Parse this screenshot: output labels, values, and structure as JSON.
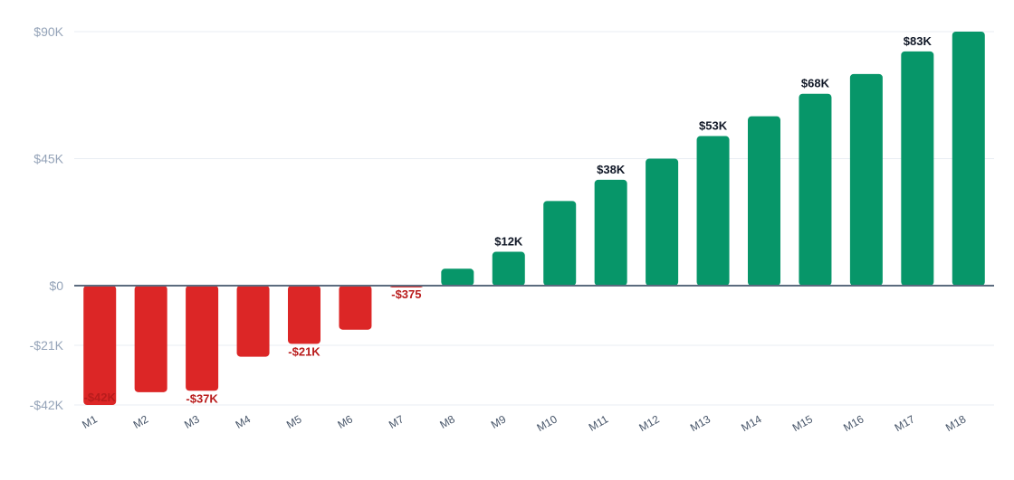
{
  "chart_data": {
    "type": "bar",
    "title": "",
    "xlabel": "",
    "ylabel": "",
    "categories": [
      "M1",
      "M2",
      "M3",
      "M4",
      "M5",
      "M6",
      "M7",
      "M8",
      "M9",
      "M10",
      "M11",
      "M12",
      "M13",
      "M14",
      "M15",
      "M16",
      "M17",
      "M18"
    ],
    "values": [
      -42000,
      -37500,
      -37000,
      -25000,
      -20500,
      -15500,
      -375,
      6000,
      12000,
      30000,
      37500,
      45000,
      53000,
      60000,
      68000,
      75000,
      83000,
      90000
    ],
    "ylim": [
      -42000,
      90000
    ],
    "y_ticks": [
      {
        "value": 90000,
        "label": "$90K"
      },
      {
        "value": 45000,
        "label": "$45K"
      },
      {
        "value": 0,
        "label": "$0"
      },
      {
        "value": -21000,
        "label": "-$21K"
      },
      {
        "value": -42000,
        "label": "-$42K"
      }
    ],
    "data_labels": [
      {
        "index": 0,
        "text": "-$42K"
      },
      {
        "index": 2,
        "text": "-$37K"
      },
      {
        "index": 4,
        "text": "-$21K"
      },
      {
        "index": 6,
        "text": "-$375"
      },
      {
        "index": 8,
        "text": "$12K"
      },
      {
        "index": 10,
        "text": "$38K"
      },
      {
        "index": 12,
        "text": "$53K"
      },
      {
        "index": 14,
        "text": "$68K"
      },
      {
        "index": 16,
        "text": "$83K"
      }
    ],
    "colors": {
      "positive": "#079669",
      "negative": "#dc2626",
      "positive_label": "#111827",
      "negative_label": "#b91c1c"
    },
    "grid": true,
    "legend": "none"
  }
}
